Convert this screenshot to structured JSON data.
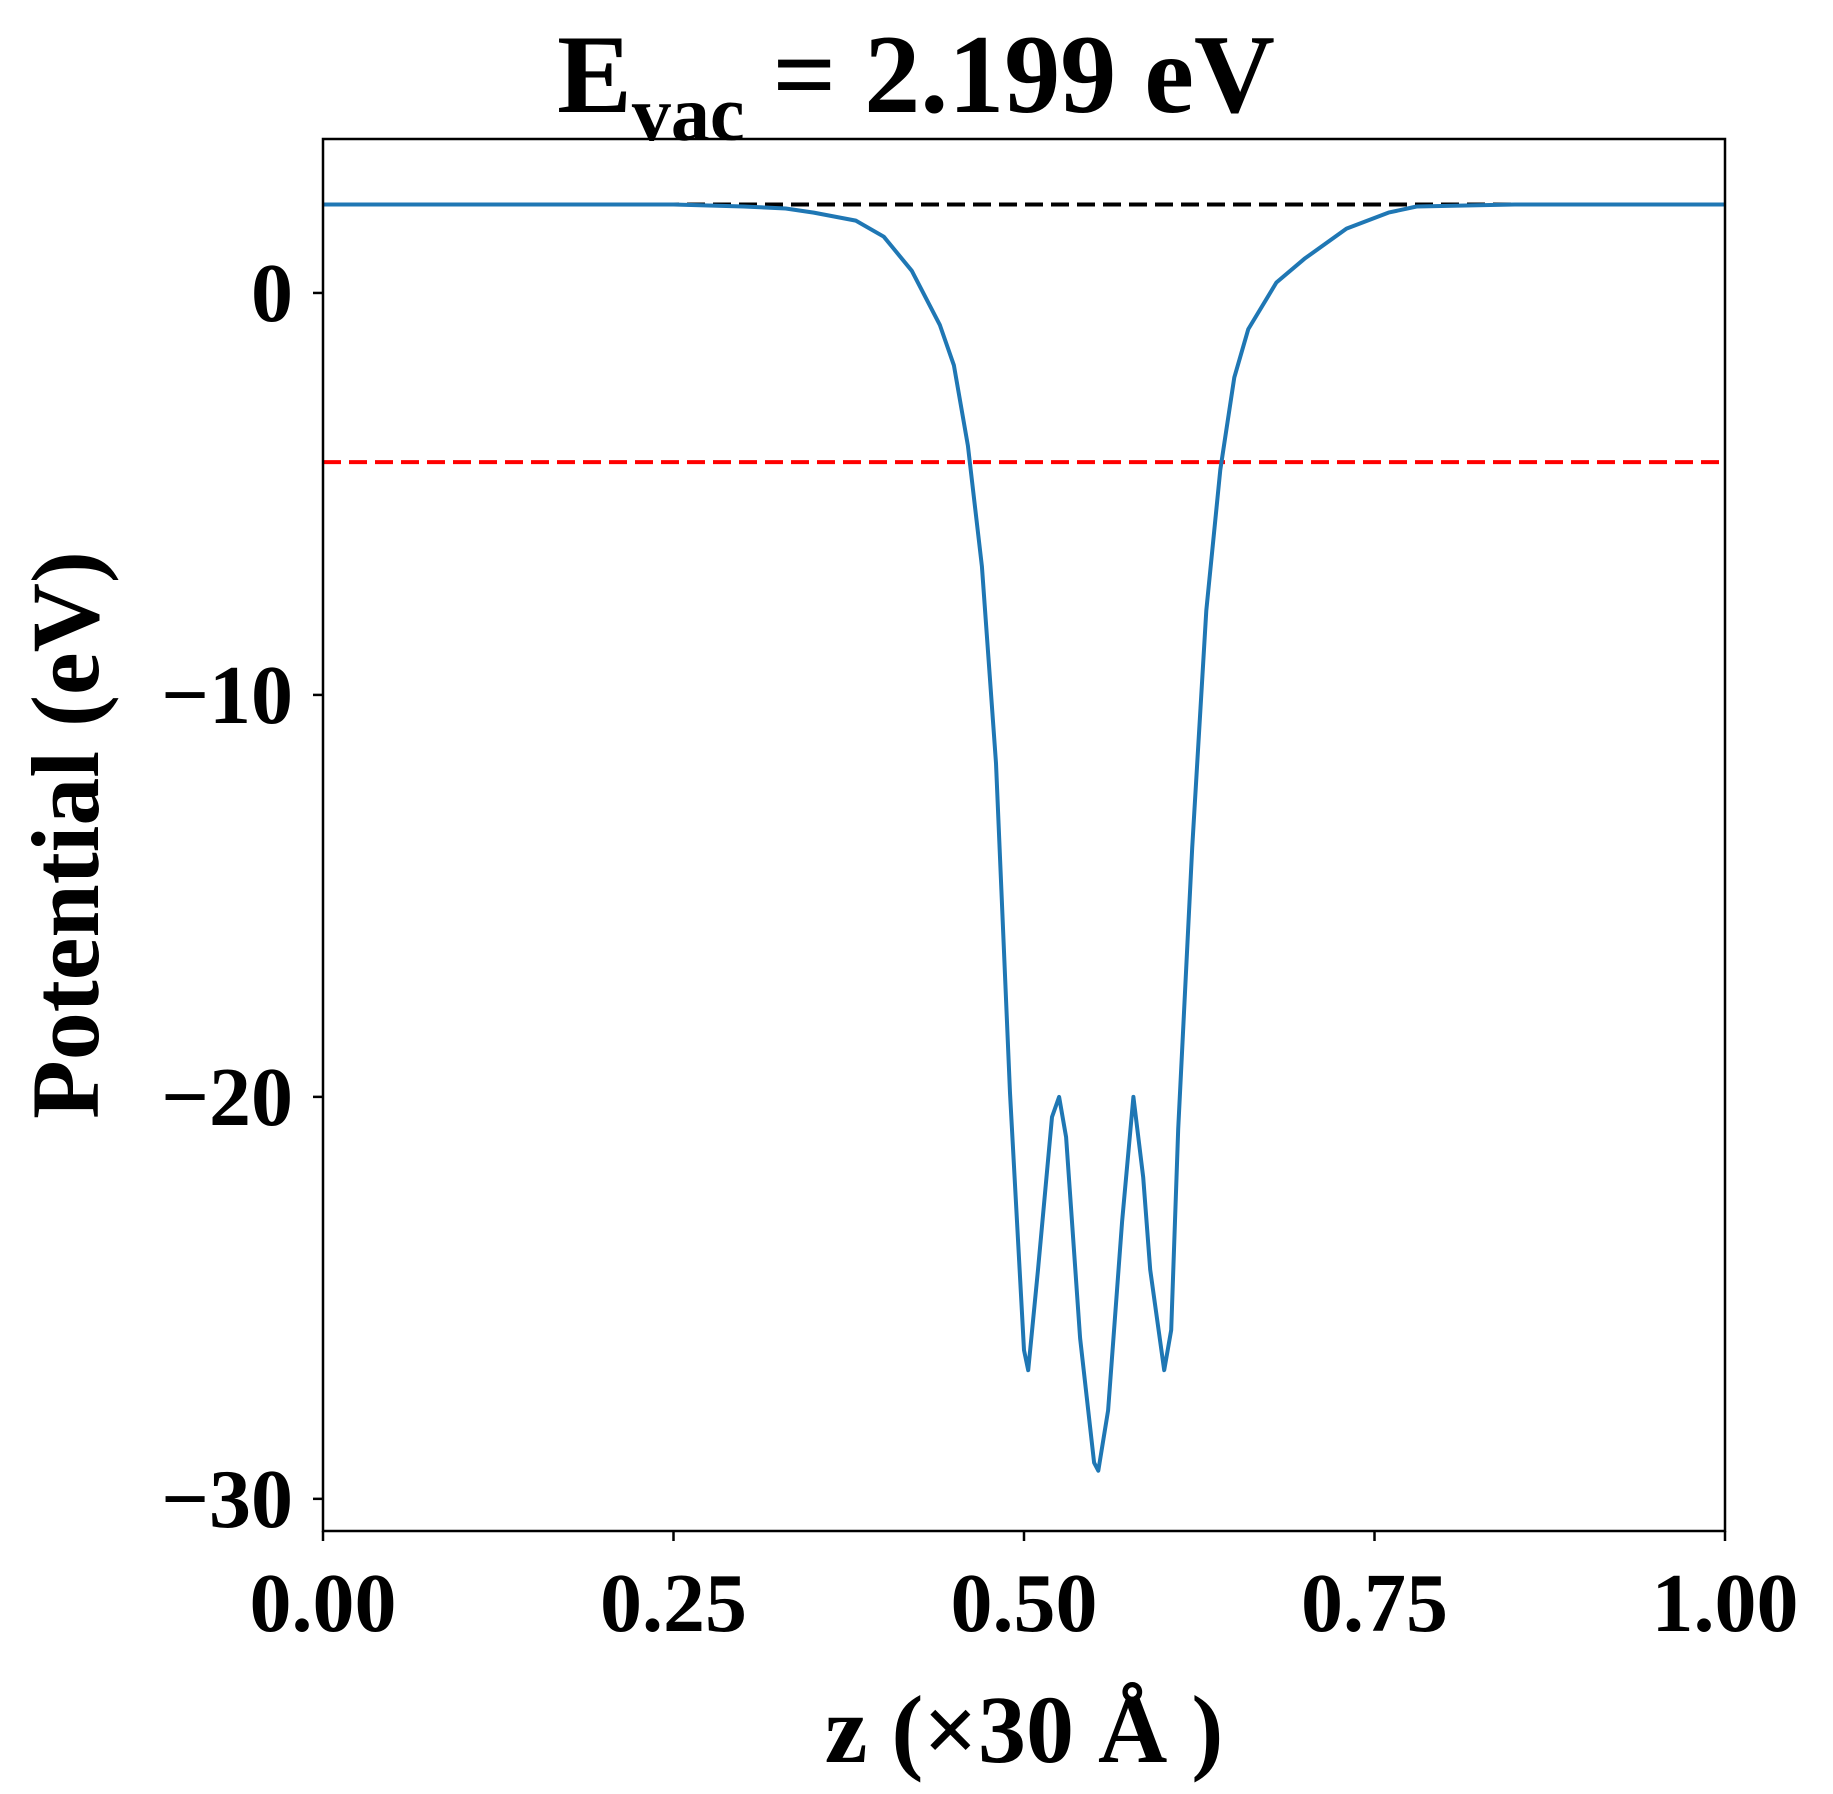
{
  "chart_data": {
    "type": "line",
    "title_main": "E",
    "title_sub": "vac",
    "title_rest": " = 2.199 eV",
    "xlabel": "z (×30 Å )",
    "ylabel": "Potential (eV)",
    "xlim": [
      0,
      1
    ],
    "ylim": [
      -30.8,
      3.83
    ],
    "xticks": [
      0,
      0.25,
      0.5,
      0.75,
      1.0
    ],
    "xtick_labels": [
      "0.00",
      "0.25",
      "0.50",
      "0.75",
      "1.00"
    ],
    "yticks": [
      0,
      -10,
      -20,
      -30
    ],
    "ytick_labels": [
      "0",
      "−10",
      "−20",
      "−30"
    ],
    "grid": false,
    "colors": {
      "series": "#1f77b4",
      "vacuum_line": "#000000",
      "fermi_line": "#ff0000"
    },
    "hlines": [
      {
        "y": 2.199,
        "color": "#000000",
        "style": "dashed"
      },
      {
        "y": -4.21,
        "color": "#ff0000",
        "style": "dashed"
      }
    ],
    "series": [
      {
        "x": [
          0,
          0.05,
          0.1,
          0.15,
          0.2,
          0.25,
          0.3,
          0.33,
          0.35,
          0.38,
          0.4,
          0.42,
          0.44,
          0.45,
          0.46,
          0.47,
          0.48,
          0.49,
          0.5,
          0.503,
          0.51,
          0.52,
          0.525,
          0.53,
          0.54,
          0.55,
          0.553,
          0.56,
          0.57,
          0.578,
          0.585,
          0.59,
          0.6,
          0.605,
          0.61,
          0.62,
          0.63,
          0.64,
          0.65,
          0.66,
          0.68,
          0.7,
          0.73,
          0.76,
          0.78,
          0.85,
          0.9,
          0.95,
          1.0
        ],
        "y": [
          2.2,
          2.2,
          2.2,
          2.2,
          2.2,
          2.2,
          2.15,
          2.1,
          2.0,
          1.8,
          1.4,
          0.55,
          -0.8,
          -1.8,
          -3.8,
          -6.8,
          -11.7,
          -19.9,
          -26.3,
          -26.8,
          -24.3,
          -20.5,
          -20.0,
          -21.0,
          -26.0,
          -29.1,
          -29.3,
          -27.8,
          -23.1,
          -20.0,
          -22.0,
          -24.3,
          -26.8,
          -25.8,
          -20.8,
          -13.8,
          -7.9,
          -4.4,
          -2.1,
          -0.9,
          0.26,
          0.85,
          1.6,
          2.0,
          2.15,
          2.2,
          2.2,
          2.2,
          2.2
        ]
      }
    ]
  }
}
